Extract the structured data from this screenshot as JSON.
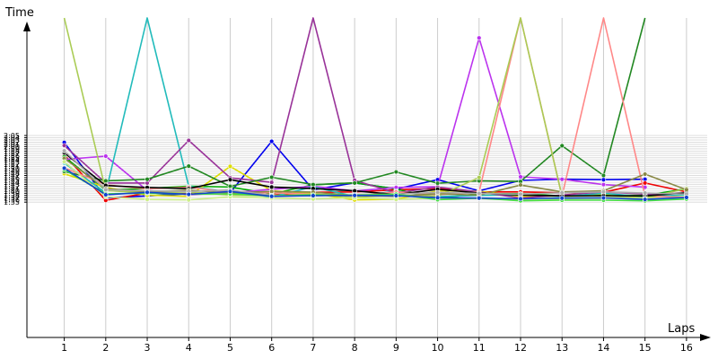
{
  "chart_data": {
    "type": "line",
    "xlabel": "Laps",
    "ylabel": "Time",
    "grid": true,
    "legend": "none",
    "xlim": [
      0.1,
      16.5
    ],
    "ylim": [
      34,
      178
    ],
    "x": [
      1,
      2,
      3,
      4,
      5,
      6,
      7,
      8,
      9,
      10,
      11,
      12,
      13,
      14,
      15,
      16
    ],
    "x_ticks": [
      "1",
      "2",
      "3",
      "4",
      "5",
      "6",
      "7",
      "8",
      "9",
      "10",
      "11",
      "12",
      "13",
      "14",
      "15",
      "16"
    ],
    "y_ticks": [
      {
        "v": 96,
        "label": "1:36"
      },
      {
        "v": 97,
        "label": "1:37"
      },
      {
        "v": 98,
        "label": "1:38"
      },
      {
        "v": 99,
        "label": "1:39"
      },
      {
        "v": 100,
        "label": "1:40"
      },
      {
        "v": 101,
        "label": "1:41"
      },
      {
        "v": 102,
        "label": "1:42"
      },
      {
        "v": 103,
        "label": "1:43"
      },
      {
        "v": 104,
        "label": "1:44"
      },
      {
        "v": 105,
        "label": "1:45"
      },
      {
        "v": 106,
        "label": "1:46"
      },
      {
        "v": 107,
        "label": "1:47"
      },
      {
        "v": 108,
        "label": "1:48"
      },
      {
        "v": 109,
        "label": "1:49"
      },
      {
        "v": 110,
        "label": "1:50"
      },
      {
        "v": 111,
        "label": "1:51"
      },
      {
        "v": 112,
        "label": "1:52"
      },
      {
        "v": 113,
        "label": "1:53"
      },
      {
        "v": 114,
        "label": "1:54"
      },
      {
        "v": 115,
        "label": "1:55"
      },
      {
        "v": 116,
        "label": "1:56"
      },
      {
        "v": 117,
        "label": "1:57"
      },
      {
        "v": 118,
        "label": "1:58"
      },
      {
        "v": 119,
        "label": "1:59"
      },
      {
        "v": 120,
        "label": "2:00"
      },
      {
        "v": 121,
        "label": "2:01"
      },
      {
        "v": 122,
        "label": "2:02"
      },
      {
        "v": 123,
        "label": "2:03"
      },
      {
        "v": 124,
        "label": "2:04"
      },
      {
        "v": 125,
        "label": "2:05"
      },
      {
        "v": 95,
        "label": "1:35"
      }
    ],
    "series": [
      {
        "color": "#0000ee",
        "values": [
          121.9,
          96.9,
          97.8,
          98.8,
          99.3,
          122.4,
          100.6,
          103.7,
          100.9,
          105.1,
          100.1,
          104.8,
          105.3,
          105.1,
          105.3,
          null
        ]
      },
      {
        "color": "#ee0000",
        "values": [
          116.3,
          95.8,
          99.1,
          98.7,
          99.4,
          98.2,
          99.4,
          99.6,
          100.6,
          101.1,
          99.6,
          99.6,
          99.2,
          99.4,
          103.6,
          99.6
        ]
      },
      {
        "color": "#00aa00",
        "values": [
          115.5,
          100.4,
          101.1,
          102.2,
          101.8,
          98.7,
          102.8,
          103.7,
          100.9,
          96.7,
          98.8,
          98.8,
          97.8,
          98.2,
          98.0,
          101.0
        ]
      },
      {
        "color": "#dddd00",
        "values": [
          107.8,
          101.7,
          98.1,
          97.6,
          111.1,
          100.1,
          98.9,
          96.0,
          96.3,
          100.1,
          99.9,
          97.6,
          97.7,
          98.7,
          97.2,
          98.2
        ]
      },
      {
        "color": "#bb33ee",
        "values": [
          114.2,
          115.7,
          100.3,
          98.3,
          99.2,
          100.8,
          102.1,
          100.0,
          101.6,
          102.0,
          169.0,
          106.4,
          105.3,
          102.9,
          101.7,
          null
        ]
      },
      {
        "color": "#22bbbb",
        "values": [
          112.6,
          99.2,
          178.0,
          102.1,
          99.4,
          97.4,
          101.9,
          97.6,
          99.9,
          97.5,
          98.0,
          98.3,
          97.6,
          99.0,
          97.4,
          98.3
        ]
      },
      {
        "color": "#993399",
        "values": [
          120.5,
          103.6,
          103.6,
          122.8,
          105.9,
          103.9,
          178.0,
          104.8,
          99.2,
          101.8,
          99.6,
          96.8,
          98.2,
          99.6,
          98.6,
          99.1
        ]
      },
      {
        "color": "#228822",
        "values": [
          108.8,
          104.6,
          105.3,
          111.2,
          102.1,
          106.2,
          102.9,
          103.6,
          108.6,
          103.5,
          104.6,
          104.3,
          120.4,
          107.0,
          178.0,
          null
        ]
      },
      {
        "color": "#ff8888",
        "values": [
          110.5,
          102.8,
          101.0,
          101.7,
          99.4,
          99.2,
          98.6,
          97.8,
          99.6,
          98.3,
          99.6,
          178.0,
          97.7,
          178.0,
          97.8,
          97.1
        ]
      },
      {
        "color": "#aacc55",
        "values": [
          178.0,
          100.2,
          99.2,
          99.6,
          98.2,
          97.8,
          98.6,
          97.1,
          98.2,
          97.7,
          106.1,
          178.0,
          97.6,
          97.8,
          96.9,
          101.1
        ]
      },
      {
        "color": "#000000",
        "values": [
          117.2,
          102.5,
          101.6,
          101.1,
          105.1,
          101.8,
          101.1,
          100.1,
          98.4,
          100.8,
          99.1,
          98.2,
          97.8,
          97.9,
          97.8,
          99.2
        ]
      },
      {
        "color": "#888844",
        "values": [
          114.7,
          101.1,
          99.6,
          100.4,
          99.1,
          99.8,
          99.5,
          98.0,
          97.6,
          98.8,
          98.1,
          102.7,
          99.6,
          100.1,
          107.6,
          100.6
        ]
      },
      {
        "color": "#aaaaaa",
        "values": [
          118.1,
          100.6,
          100.1,
          99.8,
          100.4,
          98.1,
          97.8,
          98.4,
          98.6,
          99.4,
          98.9,
          98.6,
          99.2,
          99.6,
          99.1,
          98.6
        ]
      },
      {
        "color": "#ccee88",
        "values": [
          113.2,
          97.4,
          96.2,
          96.0,
          97.4,
          96.8,
          96.4,
          96.9,
          96.2,
          96.8,
          96.6,
          96.1,
          96.4,
          96.7,
          96.7,
          96.6
        ]
      },
      {
        "color": "#44dd44",
        "values": [
          109.6,
          98.7,
          99.0,
          98.6,
          98.7,
          97.8,
          98.3,
          98.1,
          98.6,
          96.1,
          96.8,
          95.6,
          95.9,
          95.9,
          95.6,
          96.4
        ]
      },
      {
        "color": "#1144cc",
        "values": [
          110.3,
          98.3,
          99.4,
          98.5,
          99.8,
          97.6,
          97.9,
          98.0,
          97.9,
          97.0,
          96.8,
          96.5,
          96.8,
          96.9,
          96.2,
          97.1
        ]
      }
    ]
  }
}
